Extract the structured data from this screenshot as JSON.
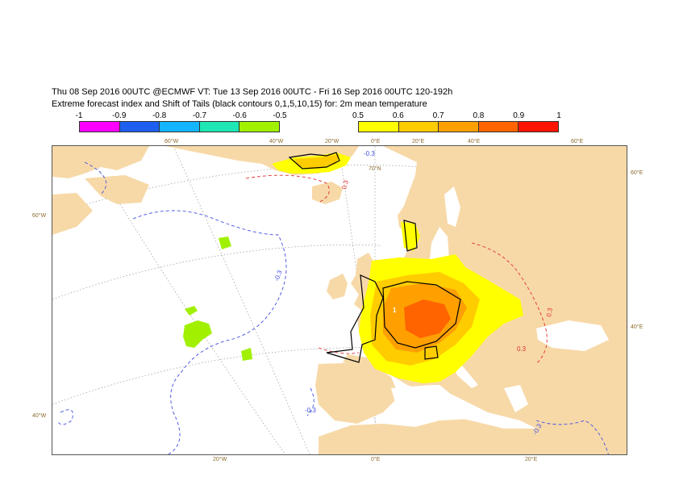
{
  "header": {
    "title_line1": "Thu 08 Sep 2016 00UTC @ECMWF VT: Tue 13 Sep 2016 00UTC - Fri 16 Sep 2016 00UTC  120-192h",
    "title_line2": "Extreme forecast index and Shift of Tails (black contours 0,1,5,10,15) for: 2m mean temperature"
  },
  "legend_negative": {
    "ticks": [
      "-1",
      "-0.9",
      "-0.8",
      "-0.7",
      "-0.6",
      "-0.5"
    ],
    "colors": [
      "#ff00ff",
      "#1e5ff0",
      "#14b4ff",
      "#1ee6b4",
      "#a0f000"
    ]
  },
  "legend_positive": {
    "ticks": [
      "0.5",
      "0.6",
      "0.7",
      "0.8",
      "0.9",
      "1"
    ],
    "colors": [
      "#ffff00",
      "#ffcc00",
      "#ffa000",
      "#ff6400",
      "#ff1400"
    ]
  },
  "map": {
    "colors": {
      "land": "#f7d9a8",
      "ocean": "#ffffff",
      "efi_05": "#ffff00",
      "efi_06": "#ffcc00",
      "efi_07": "#ffa000",
      "efi_08": "#ff6400",
      "neg_06": "#a0f000",
      "contour_neg": "#4050e0",
      "contour_pos": "#e03030",
      "sot": "#000000",
      "graticule": "#888888"
    },
    "lon_labels_top": [
      "60°W",
      "40°W",
      "20°W",
      "0°E",
      "20°E",
      "40°E",
      "60°E"
    ],
    "lon_labels_bottom": [
      "20°W",
      "0°E",
      "20°E"
    ],
    "lat_labels_left": [
      "60°W",
      "40°W"
    ],
    "lat_labels_right": [
      "60°E",
      "40°E"
    ],
    "lat_label_inner": "70°N",
    "contour_labels": [
      "-0.3",
      "-0.3",
      "0.3",
      "0.3",
      "-0.3",
      "-0.3",
      "0.3",
      "1"
    ]
  }
}
